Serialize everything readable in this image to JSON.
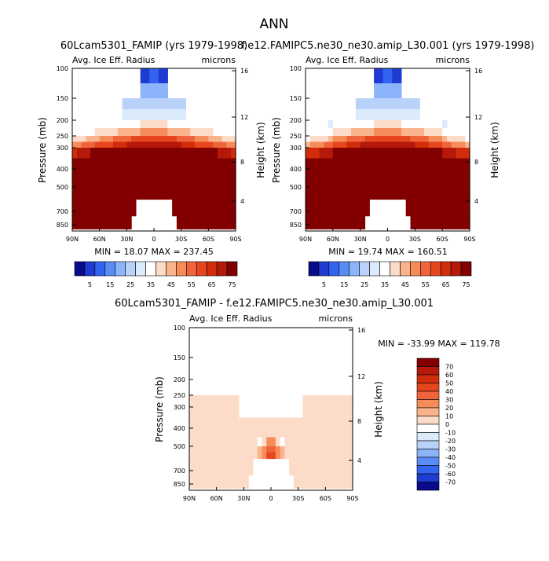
{
  "figure_title": "ANN",
  "chart_data": [
    {
      "type": "heatmap",
      "id": "model",
      "title": "60Lcam5301_FAMIP (yrs 1979-1998)",
      "field_label": "Avg. Ice Eff. Radius",
      "units": "microns",
      "ylabel": "Pressure (mb)",
      "ylabel_right": "Height (km)",
      "x_ticks": [
        "90N",
        "60N",
        "30N",
        "0",
        "30S",
        "60S",
        "90S"
      ],
      "y_ticks": [
        "100",
        "150",
        "200",
        "250",
        "300",
        "400",
        "500",
        "700",
        "850"
      ],
      "y_ticks_right": [
        "16",
        "12",
        "8",
        "4"
      ],
      "stats": "MIN =  18.07   MAX = 237.45",
      "colorbar_labels": [
        "5",
        "15",
        "25",
        "35",
        "45",
        "55",
        "65",
        "75"
      ],
      "colors": [
        "#0a0a8c",
        "#1e3cd2",
        "#3264f0",
        "#5a8cf5",
        "#8cb4fa",
        "#b9d2fa",
        "#dcebfc",
        "#ffffff",
        "#fcdcc8",
        "#fab48c",
        "#f58c5a",
        "#f0643c",
        "#e6461e",
        "#d22d0a",
        "#b4190a",
        "#820000"
      ],
      "levels": [
        0,
        5,
        10,
        15,
        20,
        25,
        30,
        35,
        40,
        45,
        50,
        55,
        60,
        65,
        70,
        75
      ]
    },
    {
      "type": "heatmap",
      "id": "obs",
      "title": "f.e12.FAMIPC5.ne30_ne30.amip_L30.001 (yrs 1979-1998)",
      "field_label": "Avg. Ice Eff. Radius",
      "units": "microns",
      "ylabel": "Pressure (mb)",
      "ylabel_right": "Height (km)",
      "x_ticks": [
        "90N",
        "60N",
        "30N",
        "0",
        "30S",
        "60S",
        "90S"
      ],
      "y_ticks": [
        "100",
        "150",
        "200",
        "250",
        "300",
        "400",
        "500",
        "700",
        "850"
      ],
      "y_ticks_right": [
        "16",
        "12",
        "8",
        "4"
      ],
      "stats": "MIN =  19.74   MAX = 160.51",
      "colorbar_labels": [
        "5",
        "15",
        "25",
        "35",
        "45",
        "55",
        "65",
        "75"
      ]
    },
    {
      "type": "heatmap",
      "id": "diff",
      "title": "60Lcam5301_FAMIP - f.e12.FAMIPC5.ne30_ne30.amip_L30.001",
      "field_label": "Avg. Ice Eff. Radius",
      "units": "microns",
      "ylabel": "Pressure (mb)",
      "ylabel_right": "Height (km)",
      "x_ticks": [
        "90N",
        "60N",
        "30N",
        "0",
        "30S",
        "60S",
        "90S"
      ],
      "y_ticks": [
        "100",
        "150",
        "200",
        "250",
        "300",
        "400",
        "500",
        "700",
        "850"
      ],
      "y_ticks_right": [
        "16",
        "12",
        "8",
        "4"
      ],
      "stats": "MIN = -33.99   MAX = 119.78",
      "colorbar_labels": [
        "70",
        "60",
        "50",
        "40",
        "30",
        "20",
        "10",
        "0",
        "-10",
        "-20",
        "-30",
        "-40",
        "-50",
        "-60",
        "-70"
      ],
      "colors": [
        "#820000",
        "#b4190a",
        "#d22d0a",
        "#e6461e",
        "#f0643c",
        "#f58c5a",
        "#fab48c",
        "#fcdcc8",
        "#ffffff",
        "#dcebfc",
        "#b9d2fa",
        "#8cb4fa",
        "#5a8cf5",
        "#3264f0",
        "#1e3cd2",
        "#0a0a8c"
      ]
    }
  ]
}
